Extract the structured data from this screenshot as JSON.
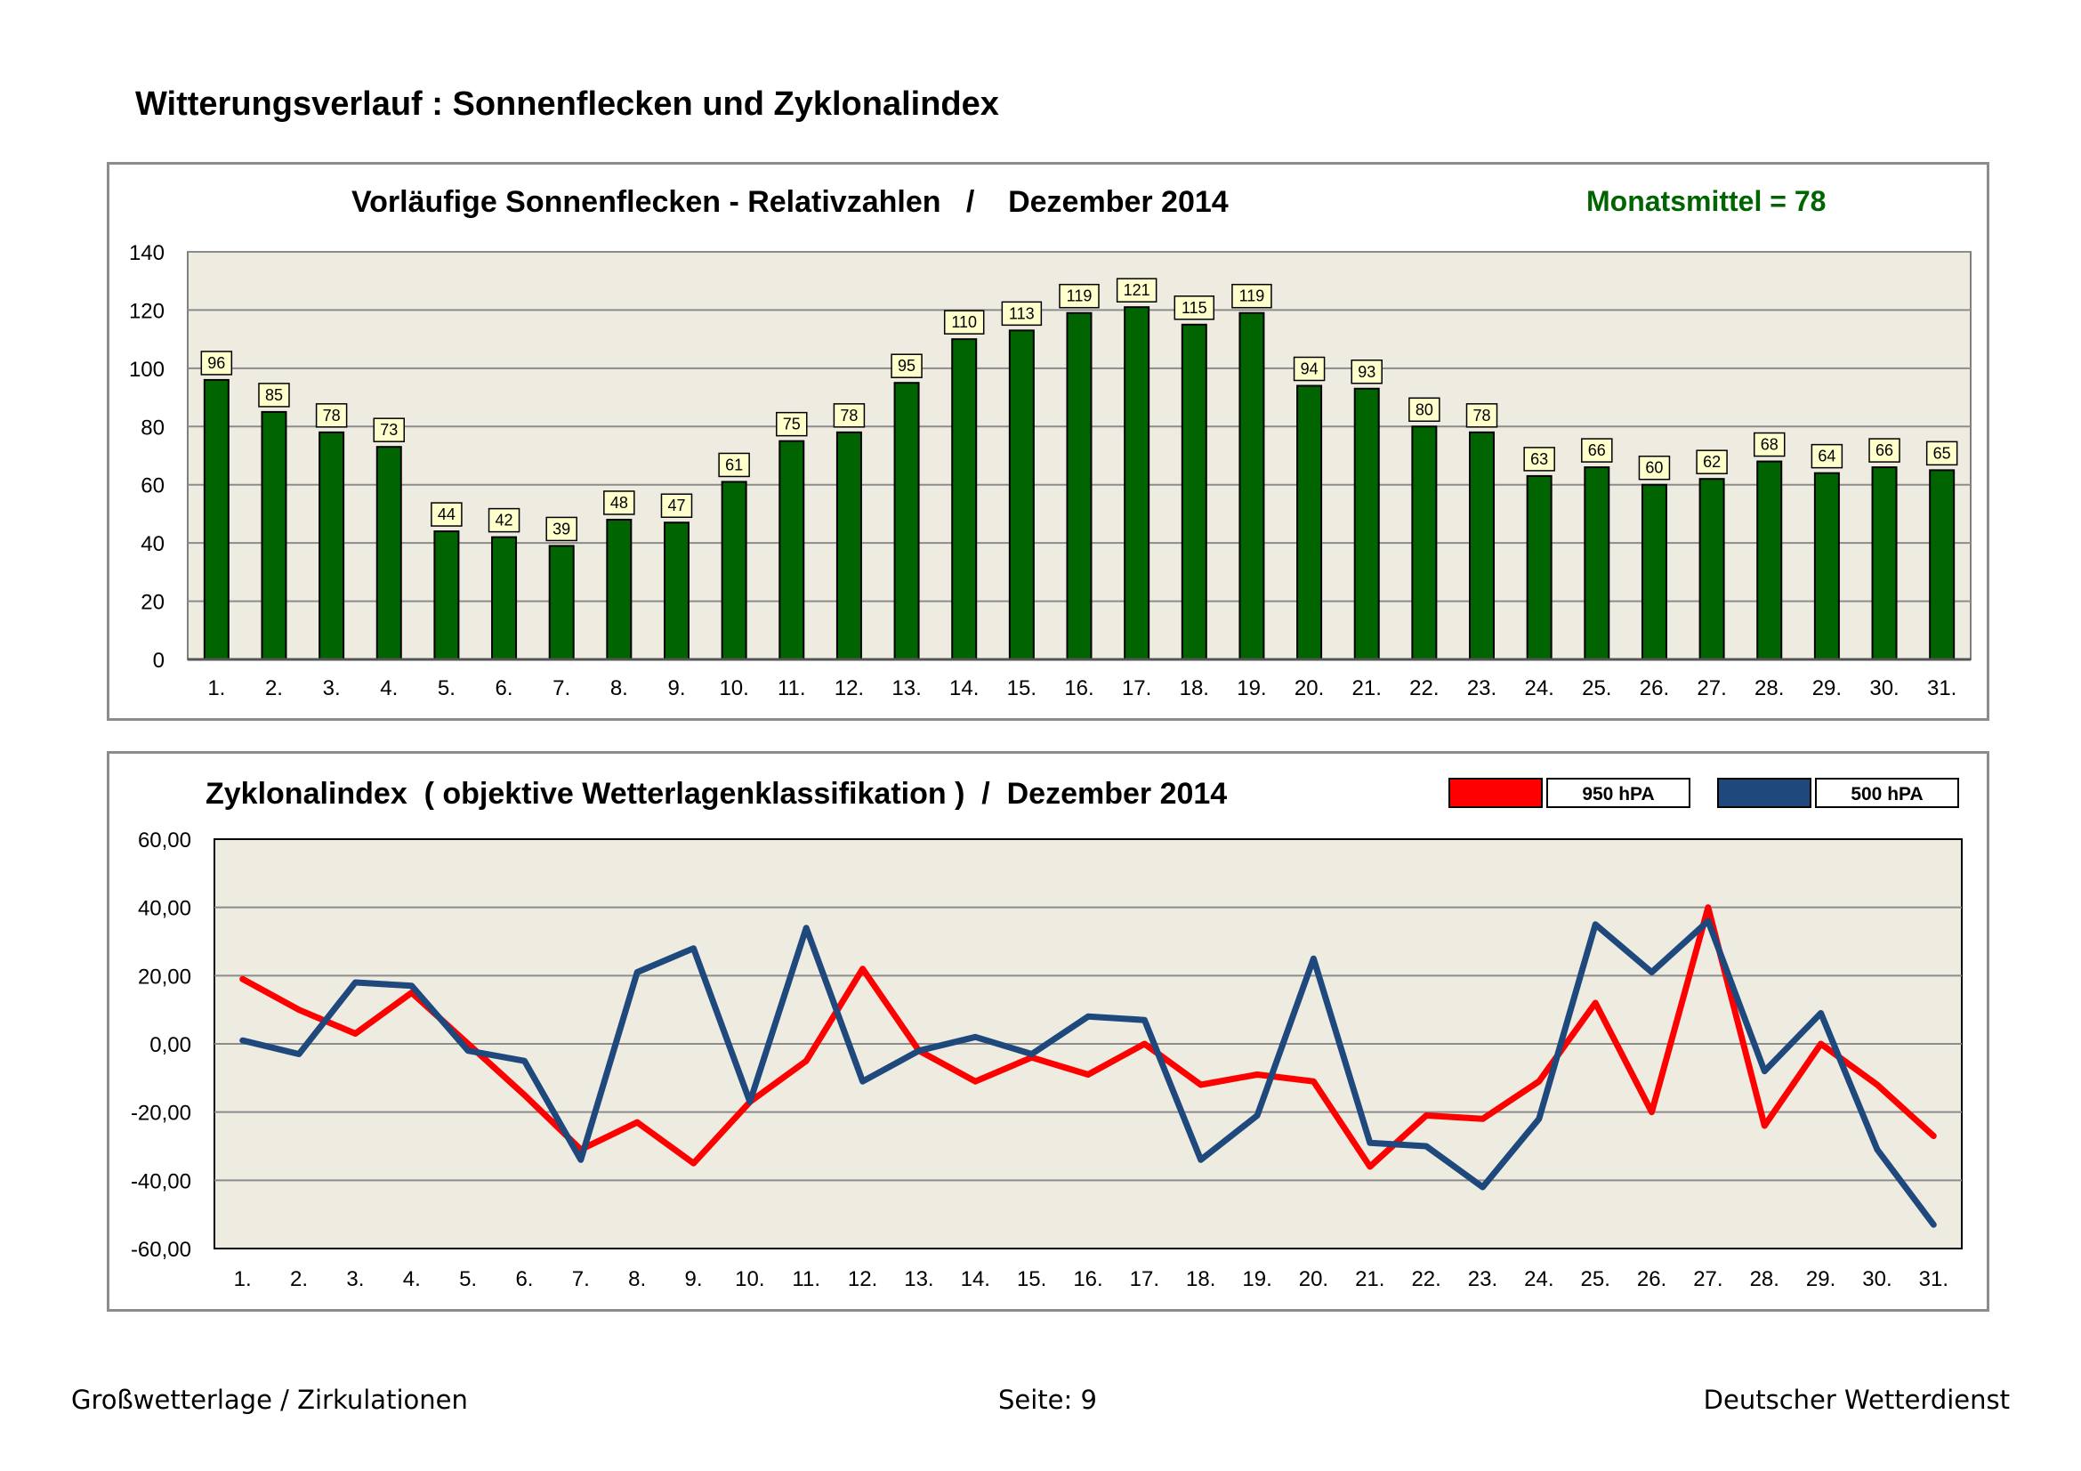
{
  "page": {
    "title": "Witterungsverlauf : Sonnenflecken und Zyklonalindex"
  },
  "footer": {
    "left": "Großwetterlage / Zirkulationen",
    "center": "Seite: 9",
    "right": "Deutscher Wetterdienst"
  },
  "colors": {
    "bar_fill": "#006400",
    "label_box": "#ffffcc",
    "plot_bg": "#eeece1",
    "grid": "#8c8c8c",
    "series_950": "#ff0000",
    "series_500": "#1f497d",
    "monthly_mean": "#006400"
  },
  "chart_data": [
    {
      "type": "bar",
      "title": "Vorläufige Sonnenflecken - Relativzahlen   /    Dezember 2014",
      "annotation": "Monatsmittel = 78",
      "categories": [
        "1.",
        "2.",
        "3.",
        "4.",
        "5.",
        "6.",
        "7.",
        "8.",
        "9.",
        "10.",
        "11.",
        "12.",
        "13.",
        "14.",
        "15.",
        "16.",
        "17.",
        "18.",
        "19.",
        "20.",
        "21.",
        "22.",
        "23.",
        "24.",
        "25.",
        "26.",
        "27.",
        "28.",
        "29.",
        "30.",
        "31."
      ],
      "values": [
        96,
        85,
        78,
        73,
        44,
        42,
        39,
        48,
        47,
        61,
        75,
        78,
        95,
        110,
        113,
        119,
        121,
        115,
        119,
        94,
        93,
        80,
        78,
        63,
        66,
        60,
        62,
        68,
        64,
        66,
        65
      ],
      "ylim": [
        0,
        140
      ],
      "yticks": [
        0,
        20,
        40,
        60,
        80,
        100,
        120,
        140
      ],
      "ytick_labels": [
        "0",
        "20",
        "40",
        "60",
        "80",
        "100",
        "120",
        "140"
      ],
      "grid": true,
      "data_labels": true
    },
    {
      "type": "line",
      "title": "Zyklonalindex  ( objektive Wetterlagenklassifikation )  /  Dezember 2014",
      "categories": [
        "1.",
        "2.",
        "3.",
        "4.",
        "5.",
        "6.",
        "7.",
        "8.",
        "9.",
        "10.",
        "11.",
        "12.",
        "13.",
        "14.",
        "15.",
        "16.",
        "17.",
        "18.",
        "19.",
        "20.",
        "21.",
        "22.",
        "23.",
        "24.",
        "25.",
        "26.",
        "27.",
        "28.",
        "29.",
        "30.",
        "31."
      ],
      "ylim": [
        -60,
        60
      ],
      "yticks": [
        -60,
        -40,
        -20,
        0,
        20,
        40,
        60
      ],
      "ytick_labels": [
        "-60,00",
        "-40,00",
        "-20,00",
        "0,00",
        "20,00",
        "40,00",
        "60,00"
      ],
      "grid": true,
      "legend_position": "top-right",
      "series": [
        {
          "name": "950 hPA",
          "color": "#ff0000",
          "values": [
            19,
            10,
            3,
            15,
            0,
            -15,
            -31,
            -23,
            -35,
            -17,
            -5,
            22,
            -2,
            -11,
            -4,
            -9,
            0,
            -12,
            -9,
            -11,
            -36,
            -21,
            -22,
            -11,
            12,
            -20,
            40,
            -24,
            0,
            -12,
            -27
          ]
        },
        {
          "name": "500 hPA",
          "color": "#1f497d",
          "values": [
            1,
            -3,
            18,
            17,
            -2,
            -5,
            -34,
            21,
            28,
            -17,
            34,
            -11,
            -2,
            2,
            -3,
            8,
            7,
            -34,
            -21,
            25,
            -29,
            -30,
            -42,
            -22,
            35,
            21,
            36,
            -8,
            9,
            -31,
            -53
          ]
        }
      ]
    }
  ]
}
